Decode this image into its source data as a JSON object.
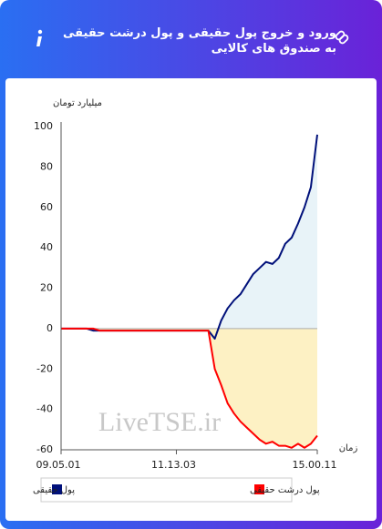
{
  "header": {
    "title": "ورود و خروج پول حقیقی و پول درشت حقیقی به صندوق های کالایی"
  },
  "chart_data": {
    "type": "line",
    "y_label": "میلیارد تومان",
    "x_label": "زمان",
    "watermark": "LiveTSE.ir",
    "categories": [
      "09.05.01",
      null,
      null,
      null,
      null,
      null,
      null,
      null,
      null,
      null,
      null,
      null,
      null,
      null,
      null,
      null,
      null,
      null,
      "11.13.03",
      null,
      null,
      null,
      null,
      null,
      null,
      null,
      null,
      null,
      null,
      null,
      null,
      null,
      null,
      null,
      null,
      null,
      null,
      null,
      null,
      null,
      "15.00.11"
    ],
    "series": [
      {
        "name": "پول حقیقی",
        "color": "#00107a",
        "area_color": "#e8f3f8",
        "values": [
          0,
          0,
          0,
          0,
          0,
          -1,
          -1,
          -1,
          -1,
          -1,
          -1,
          -1,
          -1,
          -1,
          -1,
          -1,
          -1,
          -1,
          -1,
          -1,
          -1,
          -1,
          -1,
          -1,
          -5,
          4,
          10,
          14,
          17,
          22,
          27,
          30,
          33,
          32,
          35,
          42,
          45,
          52,
          60,
          70,
          96
        ]
      },
      {
        "name": "پول درشت حقیقی",
        "color": "#ff0000",
        "area_color": "#fdf1c4",
        "values": [
          0,
          0,
          0,
          0,
          0,
          0,
          -1,
          -1,
          -1,
          -1,
          -1,
          -1,
          -1,
          -1,
          -1,
          -1,
          -1,
          -1,
          -1,
          -1,
          -1,
          -1,
          -1,
          -1,
          -20,
          -28,
          -37,
          -42,
          -46,
          -49,
          -52,
          -55,
          -57,
          -56,
          -58,
          -58,
          -59,
          -57,
          -59,
          -57,
          -53
        ]
      }
    ],
    "ylim": [
      -60,
      100
    ],
    "yticks": [
      -60,
      -40,
      -20,
      0,
      20,
      40,
      60,
      80,
      100
    ]
  }
}
